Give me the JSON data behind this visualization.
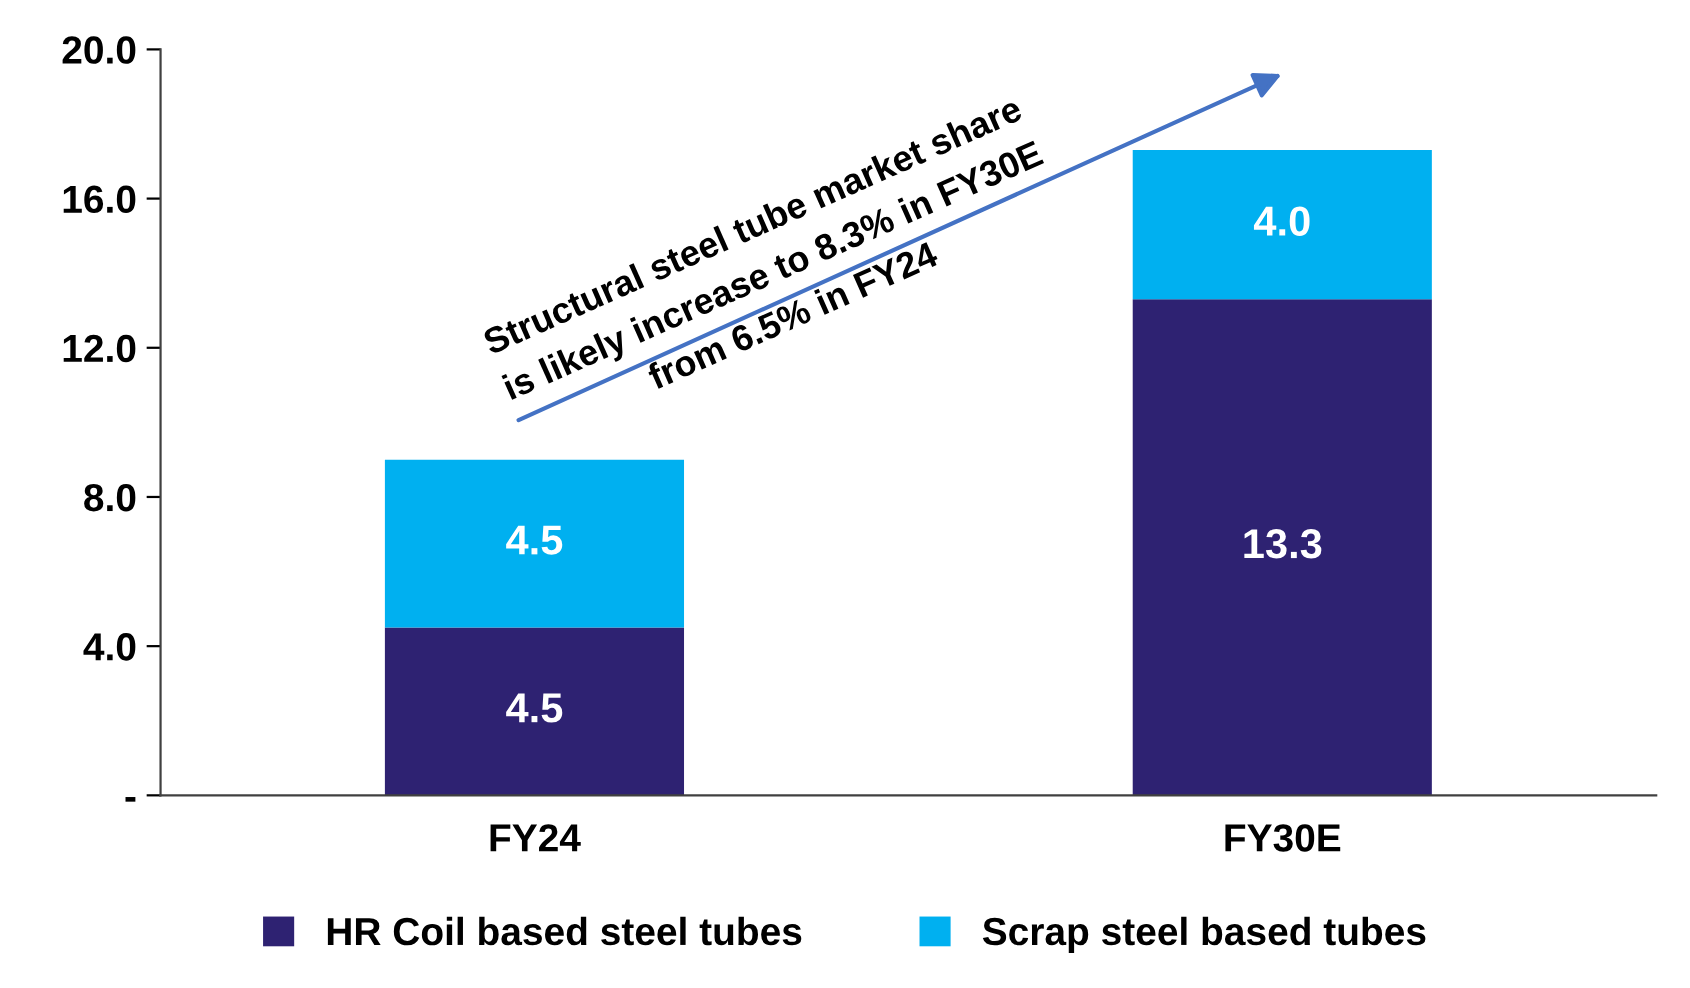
{
  "chart_data": {
    "type": "bar",
    "stacked": true,
    "categories": [
      "FY24",
      "FY30E"
    ],
    "series": [
      {
        "name": "HR Coil based steel tubes",
        "color": "#2e2272",
        "values": [
          4.5,
          13.3
        ],
        "value_labels": [
          "4.5",
          "13.3"
        ]
      },
      {
        "name": "Scrap steel based tubes",
        "color": "#00b0f0",
        "values": [
          4.5,
          4.0
        ],
        "value_labels": [
          "4.5",
          "4.0"
        ]
      }
    ],
    "ylim": [
      0,
      20
    ],
    "yticks": [
      {
        "value": 0,
        "label": "-"
      },
      {
        "value": 4,
        "label": "4.0"
      },
      {
        "value": 8,
        "label": "8.0"
      },
      {
        "value": 12,
        "label": "12.0"
      },
      {
        "value": 16,
        "label": "16.0"
      },
      {
        "value": 20,
        "label": "20.0"
      }
    ],
    "grid": false,
    "legend": "bottom",
    "annotations": [
      "Structural steel tube market share\nis likely increase to 8.3% in FY30E\nfrom 6.5% in FY24"
    ]
  }
}
